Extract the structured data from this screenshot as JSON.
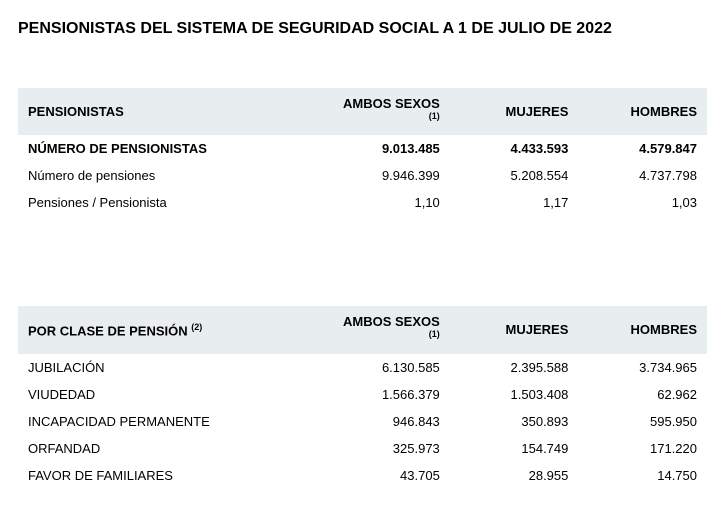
{
  "title": "PENSIONISTAS DEL SISTEMA DE SEGURIDAD SOCIAL  A 1 DE JULIO DE 2022",
  "table1": {
    "headers": {
      "label": "PENSIONISTAS",
      "ambos": "AMBOS SEXOS",
      "ambos_sup": "(1)",
      "mujeres": "MUJERES",
      "hombres": "HOMBRES"
    },
    "rows": [
      {
        "label": "NÚMERO DE PENSIONISTAS",
        "ambos": "9.013.485",
        "mujeres": "4.433.593",
        "hombres": "4.579.847",
        "bold": true
      },
      {
        "label": "Número de pensiones",
        "ambos": "9.946.399",
        "mujeres": "5.208.554",
        "hombres": "4.737.798",
        "bold": false
      },
      {
        "label": "Pensiones / Pensionista",
        "ambos": "1,10",
        "mujeres": "1,17",
        "hombres": "1,03",
        "bold": false
      }
    ]
  },
  "table2": {
    "headers": {
      "label": "POR CLASE DE PENSIÓN",
      "label_sup": "(2)",
      "ambos": "AMBOS SEXOS",
      "ambos_sup": "(1)",
      "mujeres": "MUJERES",
      "hombres": "HOMBRES"
    },
    "rows": [
      {
        "label": "JUBILACIÓN",
        "ambos": "6.130.585",
        "mujeres": "2.395.588",
        "hombres": "3.734.965"
      },
      {
        "label": "VIUDEDAD",
        "ambos": "1.566.379",
        "mujeres": "1.503.408",
        "hombres": "62.962"
      },
      {
        "label": "INCAPACIDAD PERMANENTE",
        "ambos": "946.843",
        "mujeres": "350.893",
        "hombres": "595.950"
      },
      {
        "label": "ORFANDAD",
        "ambos": "325.973",
        "mujeres": "154.749",
        "hombres": "171.220"
      },
      {
        "label": "FAVOR DE FAMILIARES",
        "ambos": "43.705",
        "mujeres": "28.955",
        "hombres": "14.750"
      }
    ]
  },
  "colors": {
    "header_bg": "#e8eef0",
    "text": "#000000",
    "background": "#ffffff"
  }
}
